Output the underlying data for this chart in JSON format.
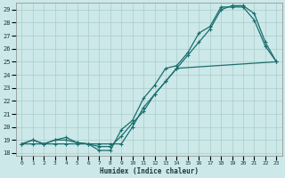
{
  "title": "",
  "xlabel": "Humidex (Indice chaleur)",
  "bg_color": "#cce8e8",
  "grid_color": "#aacccc",
  "line_color": "#1a6e6e",
  "xlim": [
    -0.5,
    23.5
  ],
  "ylim": [
    17.8,
    29.5
  ],
  "xticks": [
    0,
    1,
    2,
    3,
    4,
    5,
    6,
    7,
    8,
    9,
    10,
    11,
    12,
    13,
    14,
    15,
    16,
    17,
    18,
    19,
    20,
    21,
    22,
    23
  ],
  "yticks": [
    18,
    19,
    20,
    21,
    22,
    23,
    24,
    25,
    26,
    27,
    28,
    29
  ],
  "line1_x": [
    0,
    1,
    2,
    3,
    4,
    5,
    6,
    7,
    8,
    9,
    10,
    11,
    12,
    13,
    14,
    15,
    16,
    17,
    18,
    19,
    20,
    21,
    22,
    23
  ],
  "line1_y": [
    18.7,
    19.0,
    18.7,
    19.0,
    19.2,
    18.8,
    18.7,
    18.5,
    18.5,
    19.3,
    20.3,
    21.2,
    22.5,
    23.5,
    24.5,
    25.5,
    26.5,
    27.5,
    29.0,
    29.3,
    29.3,
    28.7,
    26.5,
    25.0
  ],
  "line2_x": [
    0,
    1,
    2,
    3,
    4,
    5,
    6,
    7,
    8,
    9,
    10,
    11,
    12,
    13,
    14,
    15,
    16,
    17,
    18,
    19,
    20,
    21,
    22,
    23
  ],
  "line2_y": [
    18.7,
    19.0,
    18.7,
    19.0,
    19.0,
    18.8,
    18.7,
    18.2,
    18.2,
    19.8,
    20.5,
    22.2,
    23.2,
    24.5,
    24.7,
    25.7,
    27.2,
    27.7,
    29.2,
    29.2,
    29.2,
    28.2,
    26.2,
    25.0
  ],
  "line3_x": [
    0,
    1,
    2,
    3,
    4,
    5,
    6,
    7,
    8,
    9,
    10,
    11,
    12,
    13,
    14,
    23
  ],
  "line3_y": [
    18.7,
    18.7,
    18.7,
    18.7,
    18.7,
    18.7,
    18.7,
    18.7,
    18.7,
    18.7,
    20.0,
    21.5,
    22.5,
    23.5,
    24.5,
    25.0
  ],
  "marker": "+",
  "marker_size": 2.5,
  "linewidth": 0.9
}
